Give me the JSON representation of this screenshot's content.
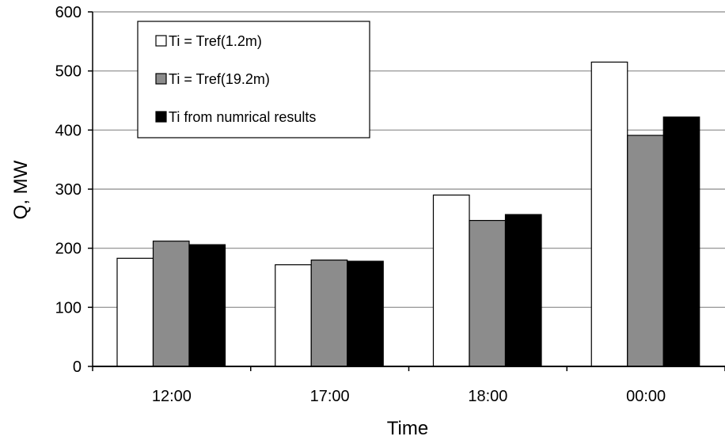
{
  "chart_data": {
    "type": "bar",
    "categories": [
      "12:00",
      "17:00",
      "18:00",
      "00:00"
    ],
    "series": [
      {
        "name": "Ti = Tref(1.2m)",
        "values": [
          183,
          172,
          290,
          515
        ],
        "color": "#ffffff"
      },
      {
        "name": "Ti = Tref(19.2m)",
        "values": [
          212,
          180,
          247,
          391
        ],
        "color": "#8c8c8c"
      },
      {
        "name": "Ti from numrical results",
        "values": [
          206,
          178,
          257,
          422
        ],
        "color": "#000000"
      }
    ],
    "xlabel": "Time",
    "ylabel": "Q, MW",
    "ylim": [
      0,
      600
    ],
    "yticks": [
      "0",
      "100",
      "200",
      "300",
      "400",
      "500",
      "600"
    ],
    "grid": true,
    "legend_position": "top-left"
  }
}
